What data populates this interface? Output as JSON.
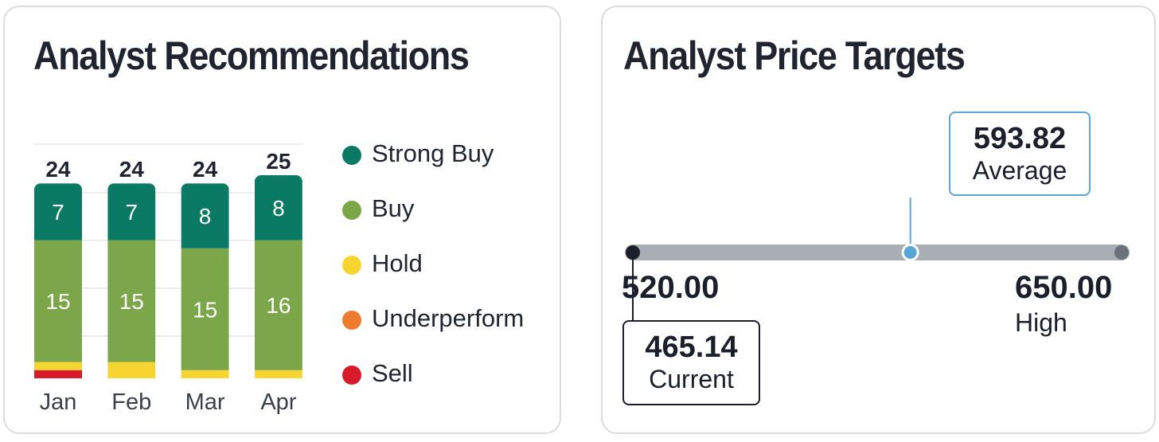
{
  "recommendations": {
    "title": "Analyst Recommendations",
    "colors": {
      "strong_buy": "#0b7a64",
      "buy": "#7ba74a",
      "hold": "#f7d531",
      "underperform": "#ef7b31",
      "sell": "#d91a2a"
    },
    "legend": [
      {
        "key": "strong_buy",
        "label": "Strong Buy"
      },
      {
        "key": "buy",
        "label": "Buy"
      },
      {
        "key": "hold",
        "label": "Hold"
      },
      {
        "key": "underperform",
        "label": "Underperform"
      },
      {
        "key": "sell",
        "label": "Sell"
      }
    ]
  },
  "chart_data": [
    {
      "type": "bar",
      "stacked": true,
      "title": "Analyst Recommendations",
      "categories": [
        "Jan",
        "Feb",
        "Mar",
        "Apr"
      ],
      "totals": [
        24,
        24,
        24,
        25
      ],
      "series": [
        {
          "name": "Sell",
          "key": "sell",
          "values": [
            1,
            0,
            0,
            0
          ]
        },
        {
          "name": "Underperform",
          "key": "underperform",
          "values": [
            0,
            0,
            0,
            0
          ]
        },
        {
          "name": "Hold",
          "key": "hold",
          "values": [
            1,
            2,
            1,
            1
          ]
        },
        {
          "name": "Buy",
          "key": "buy",
          "values": [
            15,
            15,
            15,
            16
          ]
        },
        {
          "name": "Strong Buy",
          "key": "strong_buy",
          "values": [
            7,
            7,
            8,
            8
          ]
        }
      ],
      "legend_position": "right",
      "grid": true
    },
    {
      "type": "range",
      "title": "Analyst Price Targets",
      "low": {
        "value": 520.0,
        "display": "520.00"
      },
      "average": {
        "value": 593.82,
        "display": "593.82",
        "label": "Average"
      },
      "high": {
        "value": 650.0,
        "display": "650.00",
        "label": "High"
      },
      "current": {
        "value": 465.14,
        "display": "465.14",
        "label": "Current"
      },
      "colors": {
        "track": "#a9aeb4",
        "low_dot": "#1a1f2b",
        "avg_dot": "#5aa6d6",
        "high_dot": "#6b7079",
        "avg_border": "#5aa6d6",
        "current_border": "#1a1f2b"
      }
    }
  ],
  "price_targets": {
    "title": "Analyst Price Targets"
  }
}
